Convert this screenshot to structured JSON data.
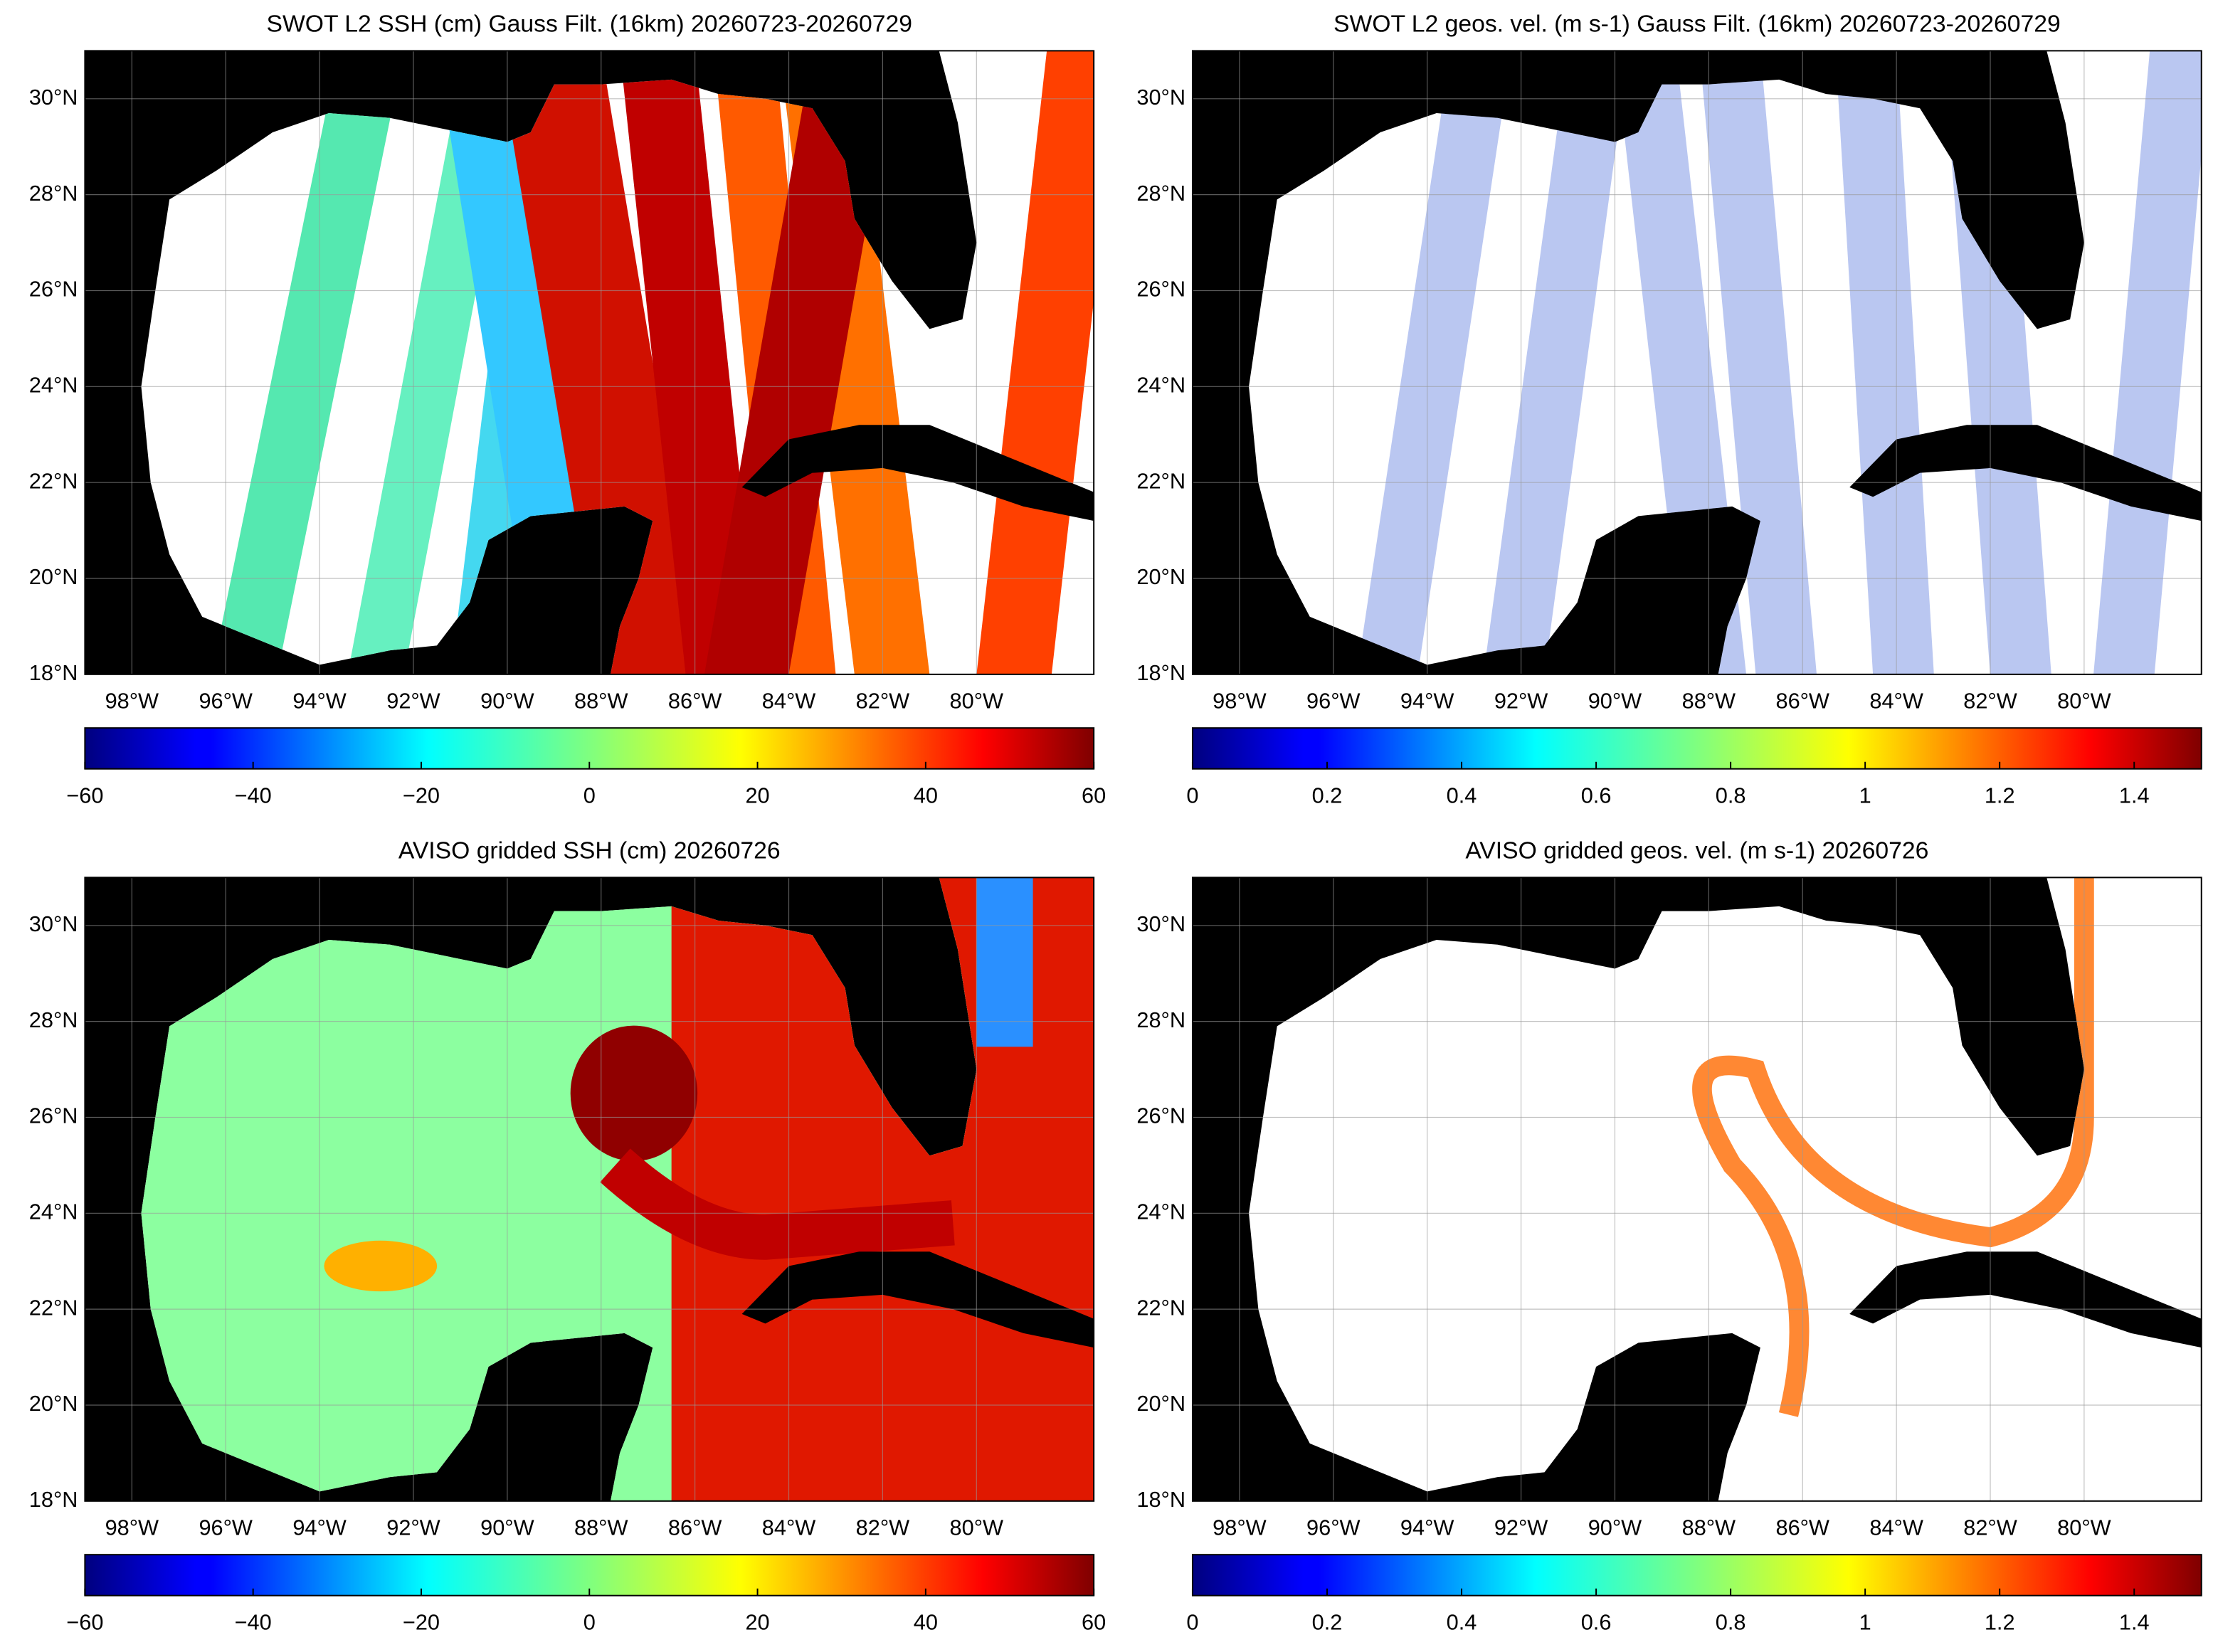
{
  "panels": [
    {
      "title": "SWOT L2 SSH (cm) Gauss Filt. (16km) 20260723-20260729",
      "xlim": [
        -99,
        -77.5
      ],
      "ylim": [
        18,
        31
      ],
      "xticks": [
        {
          "value": -98,
          "label": "98°W"
        },
        {
          "value": -96,
          "label": "96°W"
        },
        {
          "value": -94,
          "label": "94°W"
        },
        {
          "value": -92,
          "label": "92°W"
        },
        {
          "value": -90,
          "label": "90°W"
        },
        {
          "value": -88,
          "label": "88°W"
        },
        {
          "value": -86,
          "label": "86°W"
        },
        {
          "value": -84,
          "label": "84°W"
        },
        {
          "value": -82,
          "label": "82°W"
        },
        {
          "value": -80,
          "label": "80°W"
        }
      ],
      "yticks": [
        {
          "value": 18,
          "label": "18°N"
        },
        {
          "value": 20,
          "label": "20°N"
        },
        {
          "value": 22,
          "label": "22°N"
        },
        {
          "value": 24,
          "label": "24°N"
        },
        {
          "value": 26,
          "label": "26°N"
        },
        {
          "value": 28,
          "label": "28°N"
        },
        {
          "value": 30,
          "label": "30°N"
        }
      ],
      "colorbar": {
        "colormap": "jet",
        "lim": [
          -60,
          60
        ],
        "ticks": [
          {
            "value": -60,
            "label": "−60"
          },
          {
            "value": -40,
            "label": "−40"
          },
          {
            "value": -20,
            "label": "−20"
          },
          0,
          20,
          40,
          60
        ]
      }
    },
    {
      "title": "SWOT L2 geos. vel. (m s-1) Gauss Filt. (16km) 20260723-20260729",
      "xlim": [
        -99,
        -77.5
      ],
      "ylim": [
        18,
        31
      ],
      "xticks": [
        {
          "value": -98,
          "label": "98°W"
        },
        {
          "value": -96,
          "label": "96°W"
        },
        {
          "value": -94,
          "label": "94°W"
        },
        {
          "value": -92,
          "label": "92°W"
        },
        {
          "value": -90,
          "label": "90°W"
        },
        {
          "value": -88,
          "label": "88°W"
        },
        {
          "value": -86,
          "label": "86°W"
        },
        {
          "value": -84,
          "label": "84°W"
        },
        {
          "value": -82,
          "label": "82°W"
        },
        {
          "value": -80,
          "label": "80°W"
        }
      ],
      "yticks": [
        {
          "value": 18,
          "label": "18°N"
        },
        {
          "value": 20,
          "label": "20°N"
        },
        {
          "value": 22,
          "label": "22°N"
        },
        {
          "value": 24,
          "label": "24°N"
        },
        {
          "value": 26,
          "label": "26°N"
        },
        {
          "value": 28,
          "label": "28°N"
        },
        {
          "value": 30,
          "label": "30°N"
        }
      ],
      "colorbar": {
        "colormap": "jet",
        "lim": [
          0,
          1.5
        ],
        "ticks": [
          0,
          0.2,
          0.4,
          0.6,
          0.8,
          1,
          1.2,
          1.4
        ]
      }
    },
    {
      "title": "AVISO gridded SSH (cm) 20260726",
      "xlim": [
        -99,
        -77.5
      ],
      "ylim": [
        18,
        31
      ],
      "xticks": [
        {
          "value": -98,
          "label": "98°W"
        },
        {
          "value": -96,
          "label": "96°W"
        },
        {
          "value": -94,
          "label": "94°W"
        },
        {
          "value": -92,
          "label": "92°W"
        },
        {
          "value": -90,
          "label": "90°W"
        },
        {
          "value": -88,
          "label": "88°W"
        },
        {
          "value": -86,
          "label": "86°W"
        },
        {
          "value": -84,
          "label": "84°W"
        },
        {
          "value": -82,
          "label": "82°W"
        },
        {
          "value": -80,
          "label": "80°W"
        }
      ],
      "yticks": [
        {
          "value": 18,
          "label": "18°N"
        },
        {
          "value": 20,
          "label": "20°N"
        },
        {
          "value": 22,
          "label": "22°N"
        },
        {
          "value": 24,
          "label": "24°N"
        },
        {
          "value": 26,
          "label": "26°N"
        },
        {
          "value": 28,
          "label": "28°N"
        },
        {
          "value": 30,
          "label": "30°N"
        }
      ],
      "colorbar": {
        "colormap": "jet",
        "lim": [
          -60,
          60
        ],
        "ticks": [
          {
            "value": -60,
            "label": "−60"
          },
          {
            "value": -40,
            "label": "−40"
          },
          {
            "value": -20,
            "label": "−20"
          },
          0,
          20,
          40,
          60
        ]
      }
    },
    {
      "title": "AVISO gridded geos. vel. (m s-1)  20260726",
      "xlim": [
        -99,
        -77.5
      ],
      "ylim": [
        18,
        31
      ],
      "xticks": [
        {
          "value": -98,
          "label": "98°W"
        },
        {
          "value": -96,
          "label": "96°W"
        },
        {
          "value": -94,
          "label": "94°W"
        },
        {
          "value": -92,
          "label": "92°W"
        },
        {
          "value": -90,
          "label": "90°W"
        },
        {
          "value": -88,
          "label": "88°W"
        },
        {
          "value": -86,
          "label": "86°W"
        },
        {
          "value": -84,
          "label": "84°W"
        },
        {
          "value": -82,
          "label": "82°W"
        },
        {
          "value": -80,
          "label": "80°W"
        }
      ],
      "yticks": [
        {
          "value": 18,
          "label": "18°N"
        },
        {
          "value": 20,
          "label": "20°N"
        },
        {
          "value": 22,
          "label": "22°N"
        },
        {
          "value": 24,
          "label": "24°N"
        },
        {
          "value": 26,
          "label": "26°N"
        },
        {
          "value": 28,
          "label": "28°N"
        },
        {
          "value": 30,
          "label": "30°N"
        }
      ],
      "colorbar": {
        "colormap": "jet",
        "lim": [
          0,
          1.5
        ],
        "ticks": [
          0,
          0.2,
          0.4,
          0.6,
          0.8,
          1,
          1.2,
          1.4
        ]
      }
    }
  ]
}
